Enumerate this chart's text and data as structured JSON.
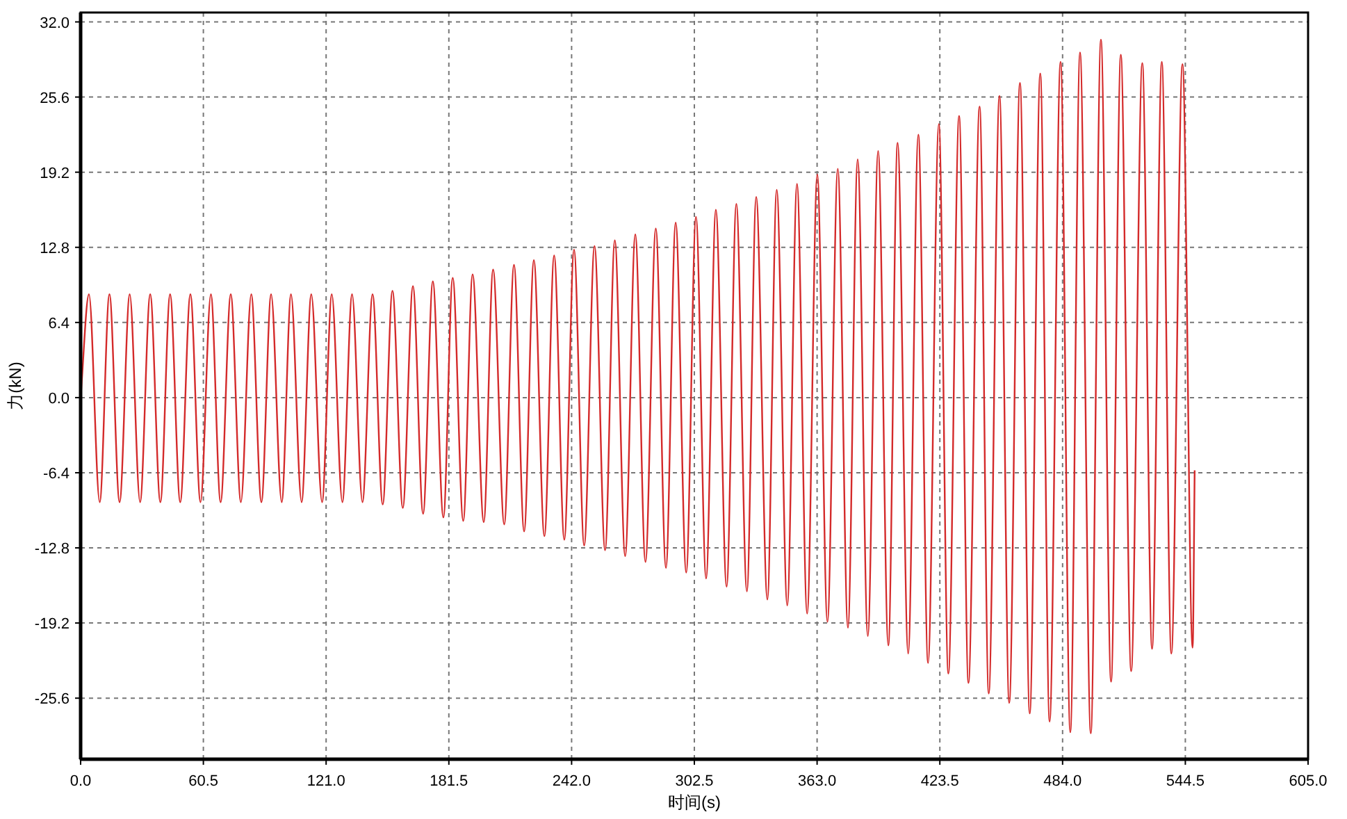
{
  "chart_data": {
    "type": "line",
    "xlabel": "时间(s)",
    "ylabel": "力(kN)",
    "xlim": [
      0,
      605
    ],
    "ylim": [
      -30.8,
      32.8
    ],
    "xticks": [
      {
        "value": 0,
        "label": "0.0"
      },
      60.5,
      {
        "value": 121,
        "label": "121.0"
      },
      181.5,
      {
        "value": 242,
        "label": "242.0"
      },
      302.5,
      {
        "value": 363,
        "label": "363.0"
      },
      423.5,
      {
        "value": 484,
        "label": "484.0"
      },
      544.5,
      {
        "value": 605,
        "label": "605.0"
      }
    ],
    "yticks": [
      -25.6,
      -19.2,
      -12.8,
      -6.4,
      {
        "value": 0,
        "label": "0.0"
      },
      6.4,
      12.8,
      19.2,
      25.6,
      {
        "value": 32,
        "label": "32.0"
      }
    ],
    "grid": true,
    "series": [
      {
        "color": "#d42a2a",
        "x": [
          0,
          4.1,
          9.4,
          14.2,
          19.2,
          24.2,
          29.3,
          34.3,
          39.3,
          44.1,
          49.1,
          54.1,
          59.1,
          64.2,
          69.0,
          74.0,
          79.0,
          84.1,
          89.1,
          93.9,
          99.1,
          103.7,
          108.9,
          113.7,
          119.0,
          123.8,
          129.0,
          133.8,
          138.9,
          143.9,
          148.9,
          153.7,
          158.8,
          163.8,
          168.8,
          173.6,
          178.8,
          183.4,
          188.6,
          193.2,
          198.7,
          203.3,
          208.8,
          213.6,
          218.6,
          223.4,
          228.6,
          233.4,
          238.4,
          243.2,
          248.2,
          253.3,
          258.5,
          263.3,
          268.4,
          273.4,
          278.4,
          283.5,
          288.5,
          293.3,
          298.5,
          303.3,
          308.3,
          313.1,
          318.4,
          323.2,
          328.4,
          333.0,
          338.5,
          343.1,
          348.3,
          353.1,
          358.1,
          363.1,
          368.1,
          373.2,
          378.2,
          383.0,
          388.0,
          393.1,
          398.1,
          402.7,
          407.9,
          412.9,
          417.7,
          423.0,
          427.7,
          433.0,
          437.6,
          443.1,
          447.6,
          452.9,
          457.7,
          463.0,
          467.8,
          473.0,
          477.6,
          483.0,
          487.8,
          492.6,
          497.9,
          502.9,
          507.9,
          512.7,
          517.8,
          523.3,
          528.1,
          532.9,
          537.6,
          543.1,
          548.1,
          549.1
        ],
        "values": [
          0,
          8.8,
          -8.9,
          8.8,
          -8.9,
          8.8,
          -8.9,
          8.8,
          -8.9,
          8.8,
          -8.9,
          8.8,
          -8.9,
          8.8,
          -8.9,
          8.8,
          -8.9,
          8.8,
          -8.9,
          8.8,
          -8.9,
          8.8,
          -8.9,
          8.8,
          -8.9,
          8.8,
          -8.9,
          8.8,
          -8.9,
          8.8,
          -9.1,
          9.1,
          -9.4,
          9.5,
          -9.9,
          9.9,
          -10.2,
          10.2,
          -10.5,
          10.5,
          -10.6,
          10.9,
          -10.8,
          11.3,
          -11.4,
          11.7,
          -11.8,
          12.1,
          -12.1,
          12.6,
          -12.6,
          12.9,
          -13.0,
          13.4,
          -13.5,
          13.9,
          -14.0,
          14.4,
          -14.5,
          14.9,
          -14.9,
          15.4,
          -15.4,
          16.0,
          -16.1,
          16.5,
          -16.5,
          17.1,
          -17.2,
          17.7,
          -17.7,
          18.2,
          -18.4,
          19.0,
          -19.1,
          19.5,
          -19.6,
          20.3,
          -20.3,
          21.0,
          -21.1,
          21.7,
          -21.8,
          22.4,
          -22.6,
          23.3,
          -23.5,
          24.0,
          -24.3,
          24.8,
          -25.2,
          25.7,
          -26.0,
          26.8,
          -26.9,
          27.6,
          -27.6,
          28.6,
          -28.5,
          29.4,
          -28.6,
          30.5,
          -24.2,
          29.2,
          -23.3,
          28.5,
          -21.4,
          28.6,
          -21.8,
          28.4,
          -21.3,
          -6.2
        ]
      }
    ]
  }
}
